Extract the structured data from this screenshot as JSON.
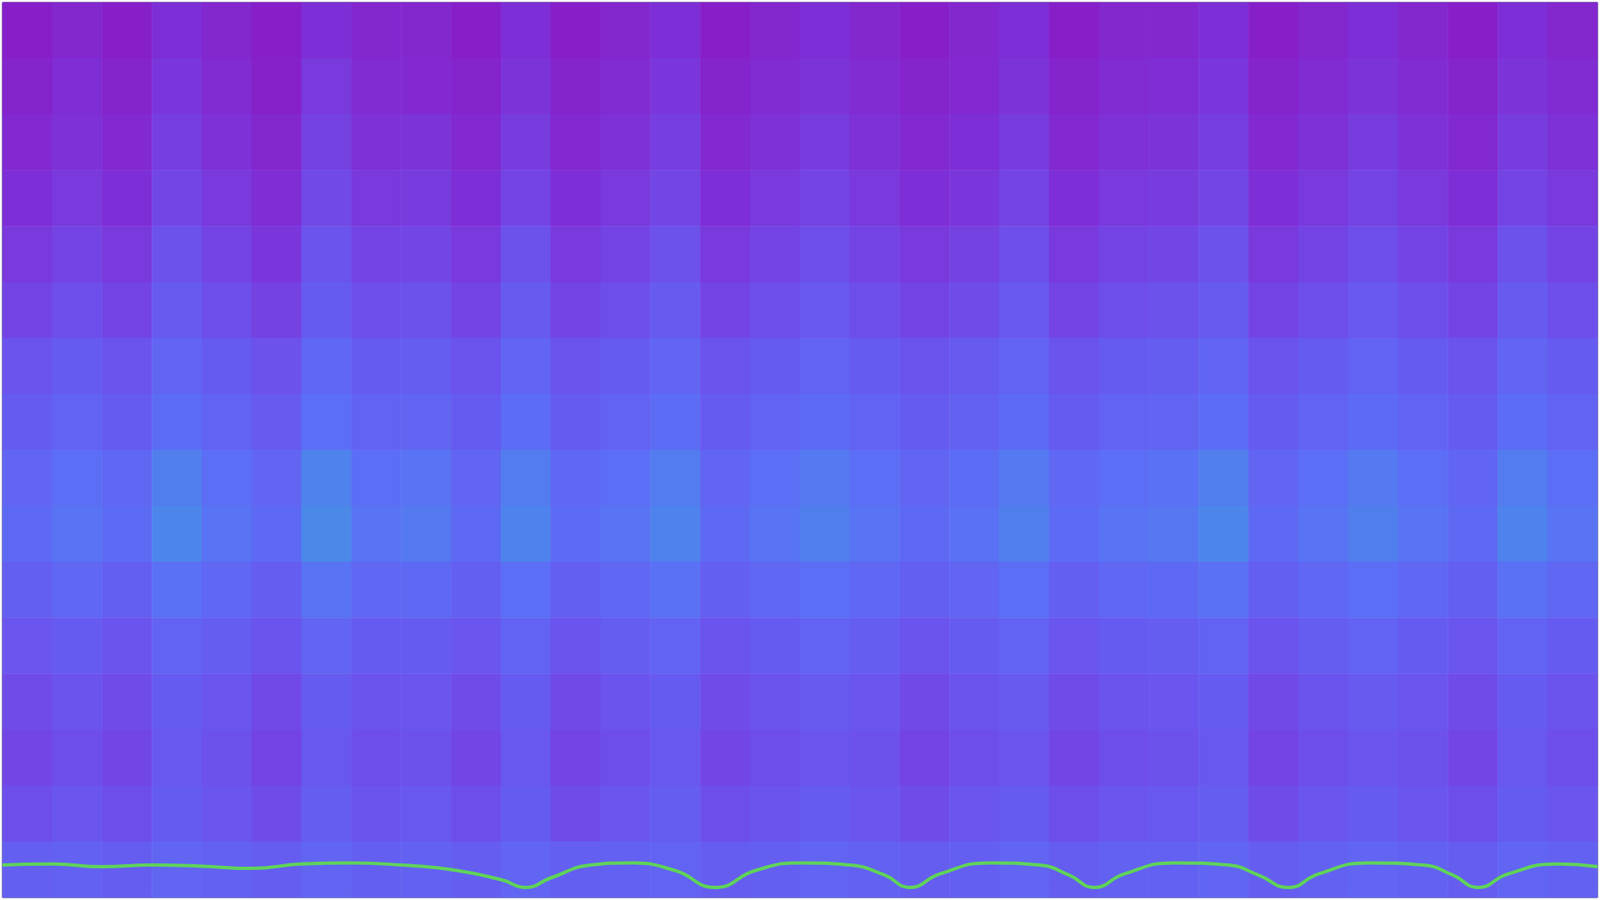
{
  "chart_data": {
    "type": "heatmap",
    "tick_labels": false,
    "zlim": [
      0,
      1
    ],
    "xlim": [
      0,
      32
    ],
    "ylim": [
      0,
      16
    ],
    "cells": [
      [
        0.06,
        0.1,
        0.06,
        0.14,
        0.1,
        0.06,
        0.14,
        0.1,
        0.1,
        0.06,
        0.14,
        0.06,
        0.1,
        0.14,
        0.06,
        0.1,
        0.14,
        0.1,
        0.06,
        0.1,
        0.14,
        0.06,
        0.1,
        0.1,
        0.14,
        0.06,
        0.1,
        0.14,
        0.1,
        0.06,
        0.14,
        0.1
      ],
      [
        0.08,
        0.13,
        0.08,
        0.17,
        0.12,
        0.07,
        0.18,
        0.12,
        0.11,
        0.08,
        0.16,
        0.08,
        0.12,
        0.17,
        0.08,
        0.12,
        0.16,
        0.12,
        0.08,
        0.11,
        0.16,
        0.08,
        0.12,
        0.13,
        0.17,
        0.08,
        0.12,
        0.16,
        0.12,
        0.08,
        0.16,
        0.12
      ],
      [
        0.11,
        0.15,
        0.11,
        0.2,
        0.15,
        0.1,
        0.21,
        0.15,
        0.16,
        0.11,
        0.19,
        0.11,
        0.15,
        0.2,
        0.11,
        0.15,
        0.19,
        0.15,
        0.11,
        0.14,
        0.19,
        0.11,
        0.15,
        0.16,
        0.2,
        0.11,
        0.15,
        0.19,
        0.15,
        0.11,
        0.19,
        0.15
      ],
      [
        0.14,
        0.18,
        0.14,
        0.23,
        0.18,
        0.13,
        0.24,
        0.18,
        0.19,
        0.14,
        0.22,
        0.14,
        0.18,
        0.23,
        0.14,
        0.18,
        0.22,
        0.18,
        0.14,
        0.17,
        0.22,
        0.14,
        0.18,
        0.19,
        0.23,
        0.14,
        0.18,
        0.22,
        0.18,
        0.14,
        0.22,
        0.18
      ],
      [
        0.18,
        0.22,
        0.18,
        0.27,
        0.22,
        0.17,
        0.28,
        0.22,
        0.23,
        0.18,
        0.27,
        0.18,
        0.22,
        0.27,
        0.18,
        0.22,
        0.26,
        0.22,
        0.18,
        0.21,
        0.26,
        0.18,
        0.22,
        0.23,
        0.27,
        0.18,
        0.22,
        0.26,
        0.22,
        0.18,
        0.27,
        0.22
      ],
      [
        0.22,
        0.26,
        0.22,
        0.31,
        0.26,
        0.21,
        0.32,
        0.26,
        0.27,
        0.22,
        0.31,
        0.22,
        0.26,
        0.31,
        0.22,
        0.26,
        0.3,
        0.26,
        0.22,
        0.25,
        0.3,
        0.22,
        0.26,
        0.27,
        0.31,
        0.22,
        0.26,
        0.3,
        0.26,
        0.22,
        0.31,
        0.26
      ],
      [
        0.28,
        0.32,
        0.28,
        0.37,
        0.32,
        0.27,
        0.38,
        0.32,
        0.33,
        0.28,
        0.37,
        0.28,
        0.32,
        0.37,
        0.28,
        0.32,
        0.36,
        0.32,
        0.28,
        0.31,
        0.36,
        0.28,
        0.32,
        0.33,
        0.37,
        0.28,
        0.32,
        0.36,
        0.32,
        0.28,
        0.37,
        0.32
      ],
      [
        0.32,
        0.36,
        0.32,
        0.41,
        0.36,
        0.31,
        0.42,
        0.36,
        0.37,
        0.32,
        0.41,
        0.32,
        0.36,
        0.41,
        0.32,
        0.36,
        0.4,
        0.36,
        0.32,
        0.35,
        0.4,
        0.32,
        0.36,
        0.37,
        0.41,
        0.32,
        0.36,
        0.4,
        0.36,
        0.32,
        0.41,
        0.36
      ],
      [
        0.37,
        0.42,
        0.38,
        0.48,
        0.42,
        0.37,
        0.49,
        0.42,
        0.44,
        0.37,
        0.47,
        0.38,
        0.42,
        0.47,
        0.37,
        0.42,
        0.46,
        0.42,
        0.37,
        0.41,
        0.46,
        0.38,
        0.42,
        0.43,
        0.48,
        0.37,
        0.42,
        0.46,
        0.42,
        0.37,
        0.47,
        0.42
      ],
      [
        0.39,
        0.44,
        0.4,
        0.5,
        0.44,
        0.39,
        0.51,
        0.44,
        0.46,
        0.39,
        0.49,
        0.4,
        0.44,
        0.49,
        0.39,
        0.44,
        0.48,
        0.44,
        0.39,
        0.43,
        0.48,
        0.4,
        0.44,
        0.45,
        0.5,
        0.39,
        0.44,
        0.48,
        0.44,
        0.39,
        0.49,
        0.44
      ],
      [
        0.34,
        0.38,
        0.34,
        0.43,
        0.38,
        0.33,
        0.44,
        0.38,
        0.39,
        0.34,
        0.42,
        0.34,
        0.38,
        0.43,
        0.34,
        0.38,
        0.42,
        0.38,
        0.34,
        0.37,
        0.42,
        0.34,
        0.38,
        0.39,
        0.43,
        0.34,
        0.38,
        0.42,
        0.38,
        0.34,
        0.43,
        0.38
      ],
      [
        0.29,
        0.32,
        0.28,
        0.36,
        0.33,
        0.28,
        0.37,
        0.32,
        0.32,
        0.29,
        0.36,
        0.28,
        0.33,
        0.36,
        0.28,
        0.32,
        0.36,
        0.33,
        0.28,
        0.32,
        0.36,
        0.29,
        0.32,
        0.33,
        0.36,
        0.28,
        0.33,
        0.36,
        0.32,
        0.29,
        0.36,
        0.32
      ],
      [
        0.25,
        0.28,
        0.25,
        0.32,
        0.29,
        0.24,
        0.32,
        0.28,
        0.29,
        0.25,
        0.32,
        0.24,
        0.28,
        0.32,
        0.25,
        0.28,
        0.31,
        0.29,
        0.24,
        0.28,
        0.31,
        0.25,
        0.28,
        0.29,
        0.32,
        0.24,
        0.28,
        0.31,
        0.29,
        0.25,
        0.32,
        0.28
      ],
      [
        0.23,
        0.26,
        0.23,
        0.3,
        0.27,
        0.22,
        0.3,
        0.26,
        0.27,
        0.23,
        0.3,
        0.22,
        0.26,
        0.3,
        0.23,
        0.26,
        0.29,
        0.27,
        0.22,
        0.26,
        0.29,
        0.23,
        0.26,
        0.27,
        0.3,
        0.22,
        0.26,
        0.29,
        0.27,
        0.23,
        0.3,
        0.26
      ],
      [
        0.26,
        0.29,
        0.26,
        0.32,
        0.29,
        0.25,
        0.33,
        0.28,
        0.3,
        0.26,
        0.32,
        0.25,
        0.29,
        0.33,
        0.26,
        0.28,
        0.32,
        0.29,
        0.25,
        0.29,
        0.32,
        0.26,
        0.29,
        0.3,
        0.33,
        0.25,
        0.29,
        0.32,
        0.29,
        0.26,
        0.32,
        0.29
      ],
      [
        0.34,
        0.35,
        0.33,
        0.37,
        0.35,
        0.33,
        0.37,
        0.34,
        0.35,
        0.33,
        0.37,
        0.34,
        0.35,
        0.36,
        0.33,
        0.34,
        0.37,
        0.35,
        0.33,
        0.34,
        0.37,
        0.33,
        0.35,
        0.35,
        0.37,
        0.33,
        0.35,
        0.37,
        0.35,
        0.33,
        0.37,
        0.35
      ]
    ],
    "series": [
      {
        "type": "line",
        "color": "#5fd35a",
        "x": [
          0,
          1,
          2,
          3,
          4,
          5,
          6,
          7,
          8,
          9,
          10,
          10.5,
          11,
          11.8,
          12.6,
          13.5,
          14.3,
          15.1,
          16,
          17,
          17.7,
          18.2,
          18.8,
          19.8,
          20.8,
          21.4,
          21.9,
          22.5,
          23.5,
          24.6,
          25.2,
          25.8,
          26.4,
          27.4,
          28.5,
          29.1,
          29.6,
          30.2,
          31.2,
          32
        ],
        "values": [
          0.58,
          0.6,
          0.55,
          0.58,
          0.56,
          0.52,
          0.6,
          0.62,
          0.58,
          0.5,
          0.32,
          0.18,
          0.35,
          0.58,
          0.62,
          0.48,
          0.18,
          0.48,
          0.62,
          0.58,
          0.4,
          0.18,
          0.42,
          0.62,
          0.58,
          0.4,
          0.18,
          0.42,
          0.62,
          0.58,
          0.4,
          0.18,
          0.42,
          0.62,
          0.58,
          0.4,
          0.18,
          0.42,
          0.6,
          0.55
        ]
      }
    ]
  }
}
